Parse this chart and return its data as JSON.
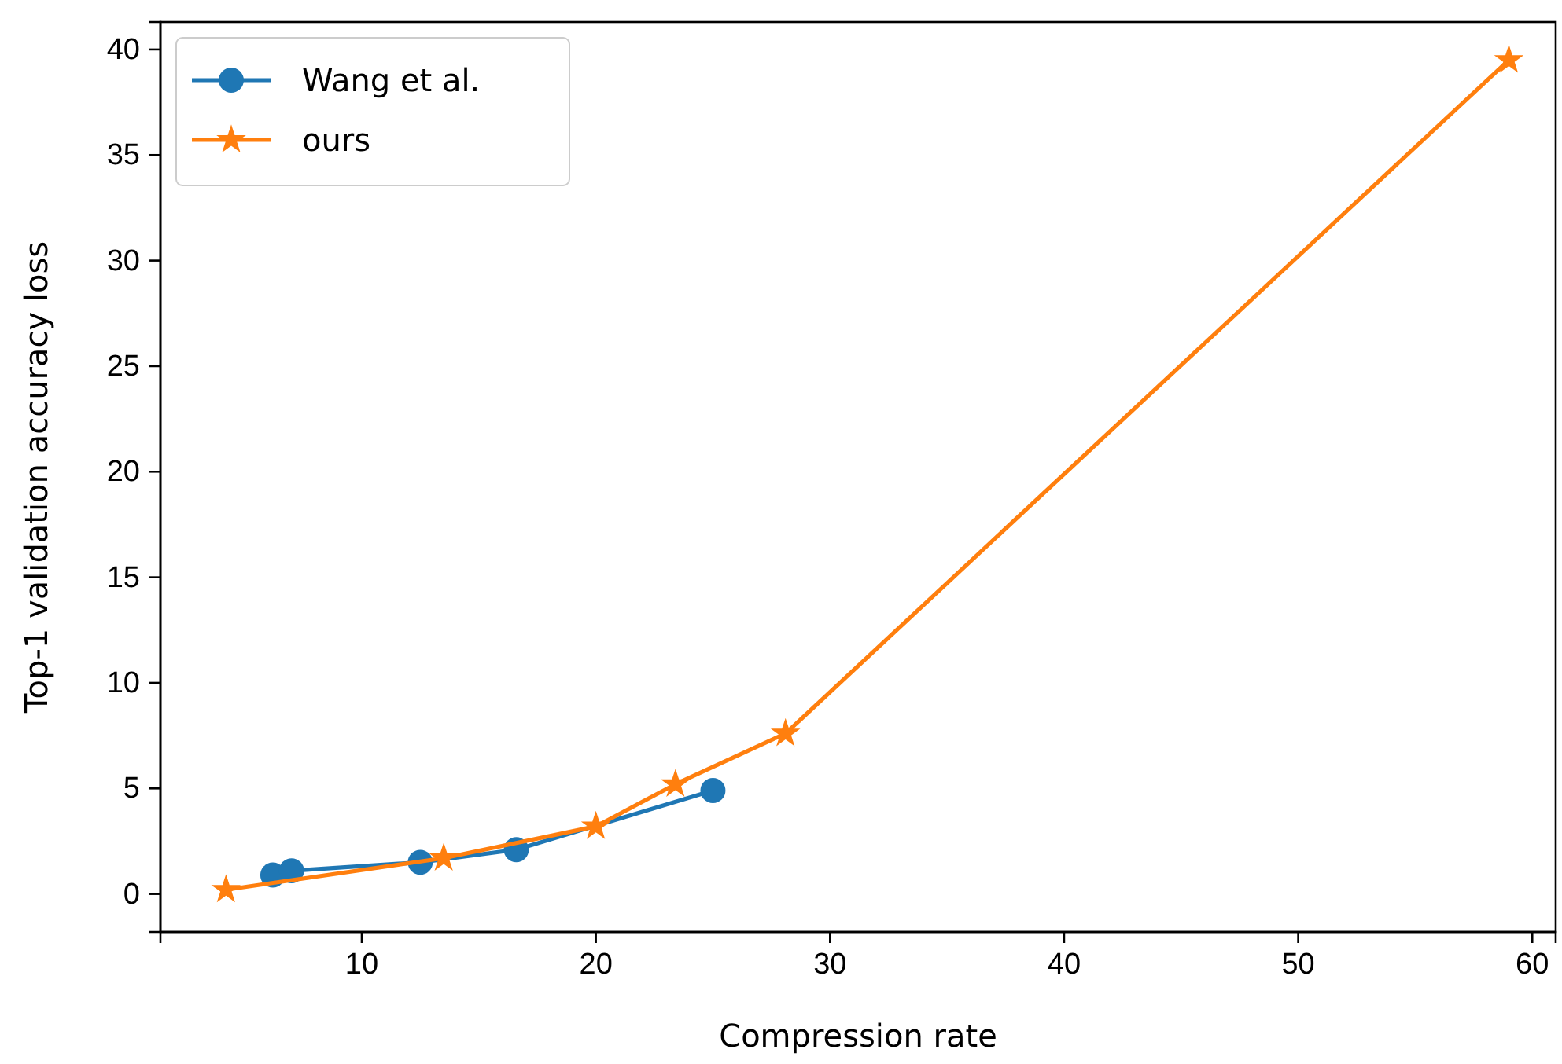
{
  "chart_data": {
    "type": "line",
    "xlabel": "Compression rate",
    "ylabel": "Top-1 validation accuracy loss",
    "xlim": [
      1.4,
      61
    ],
    "xticks": [
      10,
      20,
      30,
      40,
      50,
      60
    ],
    "ylim": [
      -1.8,
      41.3
    ],
    "yticks": [
      0,
      5,
      10,
      15,
      20,
      25,
      30,
      35,
      40
    ],
    "legend": "top left",
    "grid": false,
    "series": [
      {
        "name": "Wang et al.",
        "color": "#1f77b4",
        "marker": "circle",
        "x": [
          6.2,
          7.0,
          12.5,
          16.6,
          25.0
        ],
        "values": [
          0.9,
          1.1,
          1.5,
          2.1,
          4.9
        ]
      },
      {
        "name": "ours",
        "color": "#ff7f0e",
        "marker": "star",
        "x": [
          4.2,
          13.5,
          20.0,
          23.4,
          28.1,
          59.0
        ],
        "values": [
          0.2,
          1.7,
          3.2,
          5.2,
          7.6,
          39.5
        ]
      }
    ]
  }
}
